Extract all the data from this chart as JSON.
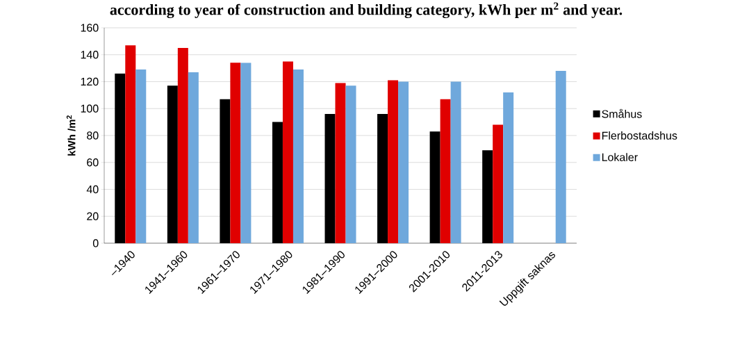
{
  "chart_data": {
    "type": "bar",
    "title": "according to year of construction and building category, kWh per m$^{2}$ and year.",
    "ylabel": "kWh /m$^{2}$",
    "categories": [
      "–1940",
      "1941–1960",
      "1961–1970",
      "1971–1980",
      "1981–1990",
      "1991–2000",
      "2001-2010",
      "2011-2013",
      "Uppgift saknas"
    ],
    "series": [
      {
        "name": "Småhus",
        "color": "#000000",
        "values": [
          126,
          117,
          107,
          90,
          96,
          96,
          83,
          69,
          null
        ]
      },
      {
        "name": "Flerbostadshus",
        "color": "#e00000",
        "values": [
          147,
          145,
          134,
          135,
          119,
          121,
          107,
          88,
          null
        ]
      },
      {
        "name": "Lokaler",
        "color": "#6fa8dc",
        "values": [
          129,
          127,
          134,
          129,
          117,
          120,
          120,
          112,
          128
        ]
      }
    ],
    "ylim": [
      0,
      160
    ],
    "yticks": [
      0,
      20,
      40,
      60,
      80,
      100,
      120,
      140,
      160
    ],
    "grid": "y",
    "legend": "right"
  }
}
